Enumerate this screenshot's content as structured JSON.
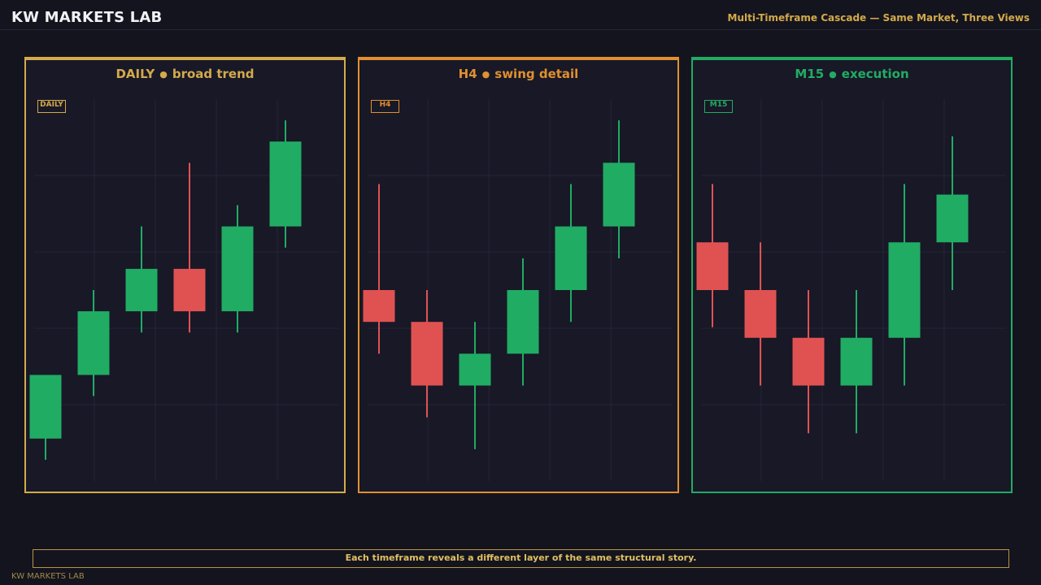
{
  "header": {
    "brand": "KW MARKETS LAB",
    "subtitle": "Multi-Timeframe Cascade — Same Market, Three Views"
  },
  "colors": {
    "background": "#14141f",
    "bull": "#21ac63",
    "bear": "#e05252",
    "daily": "#d4aa4a",
    "h4": "#e0902f",
    "m15": "#21ac63"
  },
  "chart_data": [
    {
      "type": "candlestick",
      "title": "DAILY",
      "subtitle": "broad trend",
      "tag": "DAILY",
      "accent": "#d4aa4a",
      "ylim": [
        0,
        18
      ],
      "candles": [
        {
          "open": 2.0,
          "high": 5.0,
          "low": 1.0,
          "close": 5.0
        },
        {
          "open": 5.0,
          "high": 9.0,
          "low": 4.0,
          "close": 8.0
        },
        {
          "open": 8.0,
          "high": 12.0,
          "low": 7.0,
          "close": 10.0
        },
        {
          "open": 10.0,
          "high": 15.0,
          "low": 7.0,
          "close": 8.0
        },
        {
          "open": 8.0,
          "high": 13.0,
          "low": 7.0,
          "close": 12.0
        },
        {
          "open": 12.0,
          "high": 17.0,
          "low": 11.0,
          "close": 16.0
        }
      ]
    },
    {
      "type": "candlestick",
      "title": "H4",
      "subtitle": "swing detail",
      "tag": "H4",
      "accent": "#e0902f",
      "ylim": [
        0,
        18
      ],
      "candles": [
        {
          "open": 9.0,
          "high": 14.0,
          "low": 6.0,
          "close": 7.5
        },
        {
          "open": 7.5,
          "high": 9.0,
          "low": 3.0,
          "close": 4.5
        },
        {
          "open": 4.5,
          "high": 7.5,
          "low": 1.5,
          "close": 6.0
        },
        {
          "open": 6.0,
          "high": 10.5,
          "low": 4.5,
          "close": 9.0
        },
        {
          "open": 9.0,
          "high": 14.0,
          "low": 7.5,
          "close": 12.0
        },
        {
          "open": 12.0,
          "high": 17.0,
          "low": 10.5,
          "close": 15.0
        }
      ]
    },
    {
      "type": "candlestick",
      "title": "M15",
      "subtitle": "execution",
      "tag": "M15",
      "accent": "#21ac63",
      "ylim": [
        0,
        18
      ],
      "candles": [
        {
          "open": 11.25,
          "high": 14.0,
          "low": 7.25,
          "close": 9.0
        },
        {
          "open": 9.0,
          "high": 11.25,
          "low": 4.5,
          "close": 6.75
        },
        {
          "open": 6.75,
          "high": 9.0,
          "low": 2.25,
          "close": 4.5
        },
        {
          "open": 4.5,
          "high": 9.0,
          "low": 2.25,
          "close": 6.75
        },
        {
          "open": 6.75,
          "high": 14.0,
          "low": 4.5,
          "close": 11.25
        },
        {
          "open": 11.25,
          "high": 16.25,
          "low": 9.0,
          "close": 13.5
        }
      ]
    }
  ],
  "footer": {
    "caption": "Each timeframe reveals a different layer of the same structural story.",
    "brand": "KW MARKETS LAB"
  }
}
